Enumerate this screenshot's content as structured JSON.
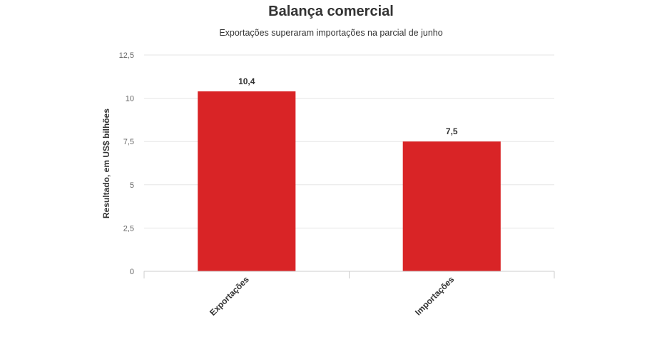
{
  "chart_data": {
    "type": "bar",
    "title": "Balança comercial",
    "subtitle": "Exportações superaram importações na parcial de junho",
    "ylabel": "Resultado, em US$ bilhões",
    "xlabel": "",
    "categories": [
      "Exportações",
      "Importações"
    ],
    "values": [
      10.4,
      7.5
    ],
    "data_labels": [
      "10,4",
      "7,5"
    ],
    "yticks": [
      0,
      2.5,
      5,
      7.5,
      10,
      12.5
    ],
    "ytick_labels": [
      "0",
      "2,5",
      "5",
      "7,5",
      "10",
      "12,5"
    ],
    "ylim": [
      0,
      12.5
    ],
    "grid": true,
    "legend": "none",
    "colors": {
      "bar": "#d92426",
      "grid": "#e6e6e6",
      "axis": "#cccccc"
    }
  }
}
